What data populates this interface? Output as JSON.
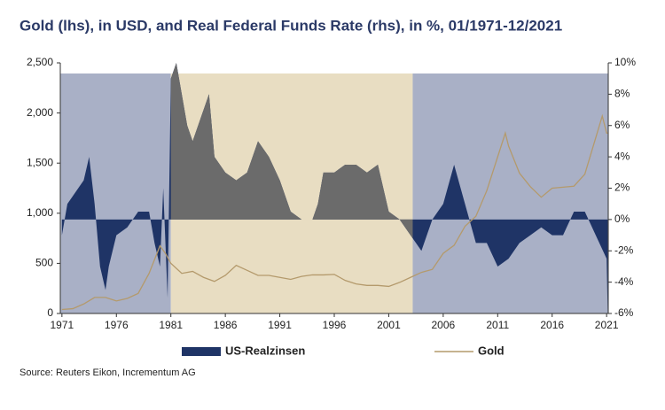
{
  "chart_data": {
    "type": "dual-axis-line-area",
    "title": "Gold (lhs), in USD, and Real Federal Funds Rate (rhs), in %, 01/1971-12/2021",
    "source": "Source: Reuters Eikon, Incrementum AG",
    "xlim": [
      1970.85,
      2021.15
    ],
    "xticks": [
      1971,
      1976,
      1981,
      1986,
      1991,
      1996,
      2001,
      2006,
      2011,
      2016,
      2021
    ],
    "ylim": [
      0,
      2500
    ],
    "yticks": [
      0,
      500,
      {
        "value": 1000,
        "label": "1,000"
      },
      {
        "value": 1500,
        "label": "1,500"
      },
      {
        "value": 2000,
        "label": "2,000"
      },
      {
        "value": 2500,
        "label": "2,500"
      }
    ],
    "y2lim": [
      -6,
      10
    ],
    "y2ticks": [
      {
        "value": -6,
        "label": "-6%"
      },
      {
        "value": -4,
        "label": "-4%"
      },
      {
        "value": -2,
        "label": "-2%"
      },
      {
        "value": 0,
        "label": "0%"
      },
      {
        "value": 2,
        "label": "2%"
      },
      {
        "value": 4,
        "label": "4%"
      },
      {
        "value": 6,
        "label": "6%"
      },
      {
        "value": 8,
        "label": "8%"
      },
      {
        "value": 10,
        "label": "10%"
      }
    ],
    "regions": [
      {
        "start": 1970.85,
        "end": 1981,
        "color": "#a9b0c6"
      },
      {
        "start": 1981,
        "end": 2003.2,
        "color": "#e8ddc2",
        "area_color": "#6b6b6b"
      },
      {
        "start": 2003.2,
        "end": 2021.15,
        "color": "#a9b0c6"
      }
    ],
    "series": [
      {
        "name": "US-Realzinsen",
        "type": "area",
        "axis": "y2",
        "color": "#1f3466",
        "x": [
          1971,
          1971.5,
          1972,
          1973,
          1973.5,
          1974,
          1974.5,
          1975,
          1975.3,
          1976,
          1977,
          1978,
          1979,
          1979.5,
          1980,
          1980.3,
          1980.7,
          1981,
          1981.5,
          1982,
          1982.5,
          1983,
          1984,
          1984.5,
          1985,
          1986,
          1987,
          1988,
          1989,
          1990,
          1991,
          1992,
          1993,
          1994,
          1994.5,
          1995,
          1996,
          1997,
          1998,
          1999,
          2000,
          2001,
          2002,
          2003,
          2004,
          2005,
          2006,
          2007,
          2008,
          2009,
          2010,
          2011,
          2012,
          2013,
          2014,
          2015,
          2016,
          2017,
          2018,
          2019,
          2020,
          2021,
          2021.1
        ],
        "values": [
          -1,
          1,
          1.5,
          2.5,
          4,
          1,
          -3,
          -4.5,
          -3,
          -1,
          -0.5,
          0.5,
          0.5,
          -1.5,
          -3,
          2,
          -5,
          9,
          10,
          8,
          6,
          5,
          7,
          8,
          4,
          3,
          2.5,
          3,
          5,
          4,
          2.5,
          0.5,
          0,
          0,
          1,
          3,
          3,
          3.5,
          3.5,
          3,
          3.5,
          0.5,
          0,
          -1,
          -2,
          0,
          1,
          3.5,
          1,
          -1.5,
          -1.5,
          -3,
          -2.5,
          -1.5,
          -1,
          -0.5,
          -1,
          -1,
          0.5,
          0.5,
          -1,
          -2.5,
          -6
        ]
      },
      {
        "name": "Gold",
        "type": "line",
        "axis": "y",
        "color": "#b49a6c",
        "x": [
          1971,
          1972,
          1973,
          1974,
          1975,
          1976,
          1977,
          1978,
          1979,
          1980,
          1980.5,
          1981,
          1982,
          1983,
          1984,
          1985,
          1986,
          1987,
          1988,
          1989,
          1990,
          1991,
          1992,
          1993,
          1994,
          1995,
          1996,
          1997,
          1998,
          1999,
          2000,
          2001,
          2002,
          2003,
          2004,
          2005,
          2006,
          2007,
          2008,
          2009,
          2010,
          2011.7,
          2012,
          2013,
          2014,
          2015,
          2016,
          2017,
          2018,
          2019,
          2020.6,
          2021,
          2021.1
        ],
        "values": [
          40,
          48,
          95,
          160,
          160,
          125,
          150,
          200,
          400,
          675,
          600,
          500,
          400,
          420,
          360,
          320,
          380,
          480,
          430,
          380,
          380,
          360,
          340,
          370,
          385,
          385,
          390,
          330,
          295,
          280,
          280,
          270,
          310,
          360,
          410,
          440,
          600,
          680,
          870,
          970,
          1225,
          1800,
          1670,
          1400,
          1265,
          1160,
          1250,
          1260,
          1270,
          1390,
          1970,
          1800,
          1800
        ]
      }
    ]
  }
}
